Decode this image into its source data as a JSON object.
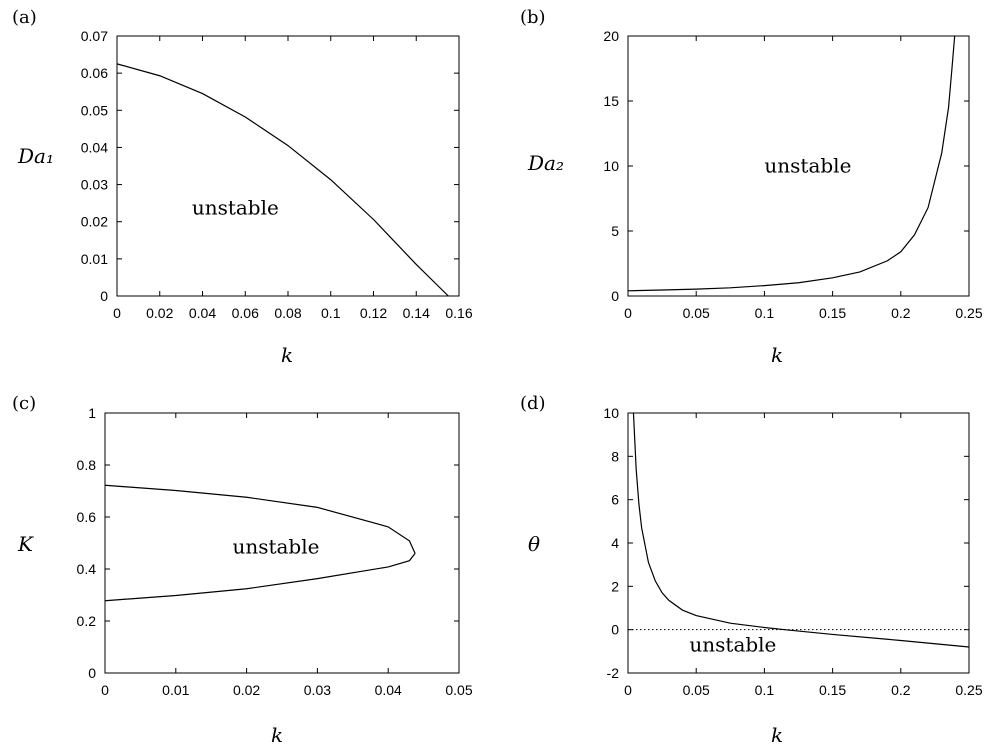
{
  "chart_data": [
    {
      "panel": "(a)",
      "type": "line",
      "xlabel": "k",
      "ylabel": "Da₁",
      "xlim": [
        0,
        0.16
      ],
      "ylim": [
        0,
        0.07
      ],
      "xticks": [
        "0",
        "0.02",
        "0.04",
        "0.06",
        "0.08",
        "0.1",
        "0.12",
        "0.14",
        "0.16"
      ],
      "yticks": [
        "0",
        "0.01",
        "0.02",
        "0.03",
        "0.04",
        "0.05",
        "0.06",
        "0.07"
      ],
      "annotations": [
        {
          "text": "unstable",
          "x": 0.035,
          "y": 0.022
        }
      ],
      "series": [
        {
          "x": [
            0,
            0.02,
            0.04,
            0.06,
            0.08,
            0.1,
            0.12,
            0.14,
            0.155
          ],
          "y": [
            0.0625,
            0.0593,
            0.0545,
            0.0482,
            0.0405,
            0.0313,
            0.0206,
            0.0085,
            0.0
          ]
        }
      ]
    },
    {
      "panel": "(b)",
      "type": "line",
      "xlabel": "k",
      "ylabel": "Da₂",
      "xlim": [
        0,
        0.25
      ],
      "ylim": [
        0,
        20
      ],
      "xticks": [
        "0",
        "0.05",
        "0.1",
        "0.15",
        "0.2",
        "0.25"
      ],
      "yticks": [
        "0",
        "5",
        "10",
        "15",
        "20"
      ],
      "annotations": [
        {
          "text": "unstable",
          "x": 0.1,
          "y": 9.5
        }
      ],
      "series": [
        {
          "x": [
            0,
            0.025,
            0.05,
            0.075,
            0.1,
            0.125,
            0.15,
            0.17,
            0.19,
            0.2,
            0.21,
            0.22,
            0.23,
            0.235,
            0.2375,
            0.2395
          ],
          "y": [
            0.4,
            0.46,
            0.53,
            0.63,
            0.8,
            1.02,
            1.4,
            1.85,
            2.7,
            3.4,
            4.7,
            6.8,
            11.0,
            14.5,
            17.5,
            20.0
          ]
        }
      ]
    },
    {
      "panel": "(c)",
      "type": "line",
      "xlabel": "k",
      "ylabel": "K",
      "xlim": [
        0,
        0.05
      ],
      "ylim": [
        0,
        1
      ],
      "xticks": [
        "0",
        "0.01",
        "0.02",
        "0.03",
        "0.04",
        "0.05"
      ],
      "yticks": [
        "0",
        "0.2",
        "0.4",
        "0.6",
        "0.8",
        "1"
      ],
      "annotations": [
        {
          "text": "unstable",
          "x": 0.018,
          "y": 0.46
        }
      ],
      "series": [
        {
          "x": [
            0,
            0.01,
            0.02,
            0.03,
            0.04,
            0.043,
            0.0438
          ],
          "y": [
            0.722,
            0.702,
            0.676,
            0.637,
            0.562,
            0.508,
            0.46
          ]
        },
        {
          "x": [
            0,
            0.01,
            0.02,
            0.03,
            0.04,
            0.043,
            0.0438
          ],
          "y": [
            0.278,
            0.298,
            0.324,
            0.363,
            0.408,
            0.432,
            0.46
          ]
        }
      ]
    },
    {
      "panel": "(d)",
      "type": "line",
      "xlabel": "k",
      "ylabel": "θ",
      "xlim": [
        0,
        0.25
      ],
      "ylim": [
        -2,
        10
      ],
      "xticks": [
        "0",
        "0.05",
        "0.1",
        "0.15",
        "0.2",
        "0.25"
      ],
      "yticks": [
        "-2",
        "0",
        "2",
        "4",
        "6",
        "8",
        "10"
      ],
      "annotations": [
        {
          "text": "unstable",
          "x": 0.045,
          "y": -1.0
        }
      ],
      "reference_line": {
        "y": 0,
        "style": "dotted"
      },
      "series": [
        {
          "x": [
            0.004,
            0.006,
            0.008,
            0.01,
            0.015,
            0.02,
            0.025,
            0.03,
            0.04,
            0.05,
            0.075,
            0.1,
            0.115,
            0.15,
            0.2,
            0.25
          ],
          "y": [
            10.0,
            7.4,
            5.8,
            4.7,
            3.1,
            2.25,
            1.7,
            1.35,
            0.9,
            0.65,
            0.3,
            0.1,
            0.0,
            -0.22,
            -0.5,
            -0.8
          ]
        }
      ]
    }
  ]
}
